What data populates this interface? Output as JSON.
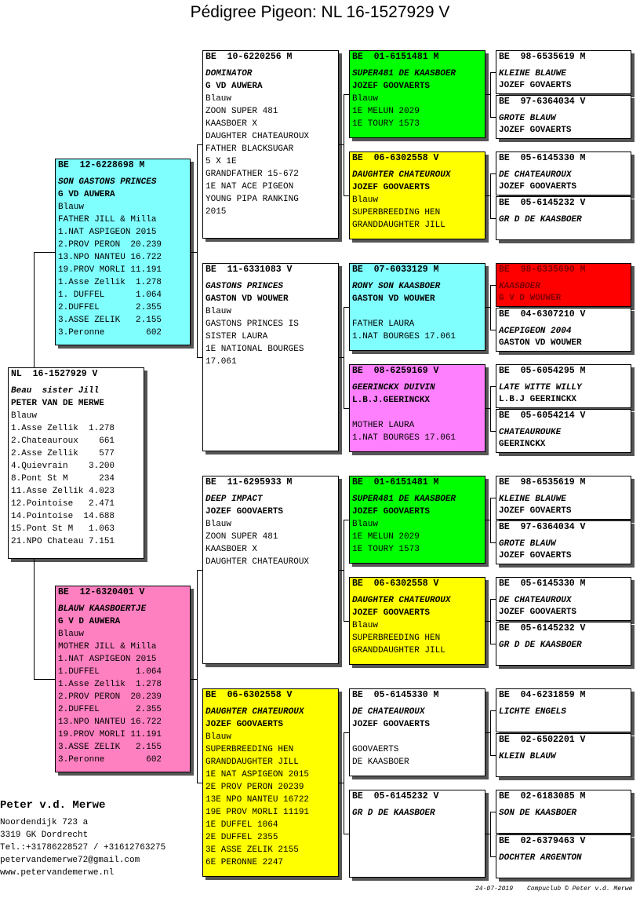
{
  "title": "Pédigree Pigeon: NL  16-1527929 V",
  "boxes": [
    {
      "id": "NL  16-1527929 V",
      "name": "Beau  sister Jill",
      "breeder": "PETER VAN DE MERWE",
      "plumage": "Blauw",
      "notes": [
        "1.Asse Zellik  1.278",
        "2.Chateauroux    661",
        "2.Asse Zellik    577",
        "4.Quievrain    3.200",
        "8.Pont St M      234",
        "11.Asse Zellik 4.023",
        "12.Pointoise   2.471",
        "14.Pointoise  14.688",
        "15.Pont St M   1.063",
        "21.NPO Chateau 7.151"
      ],
      "fill": "#ffffff"
    },
    {
      "id": "BE  12-6228698 M",
      "name": "SON GASTONS PRINCES",
      "breeder": "G VD AUWERA",
      "plumage": "Blauw",
      "notes": [
        "FATHER JILL & Milla",
        "1.NAT ASPIGEON 2015",
        "2.PROV PERON  20.239",
        "13.NPO NANTEU 16.722",
        "19.PROV MORLI 11.191",
        "1.Asse Zellik  1.278",
        "1. DUFFEL      1.064",
        "2.DUFFEL       2.355",
        "3.ASSE ZELIK   2.155",
        "3.Peronne        602"
      ],
      "fill": "#80ffff"
    },
    {
      "id": "BE  12-6320401 V",
      "name": "BLAUW KAASBOERTJE",
      "breeder": "G V D AUWERA",
      "plumage": "Blauw",
      "notes": [
        "MOTHER JILL & Milla",
        "1.NAT ASPIGEON 2015",
        "1.DUFFEL       1.064",
        "1.Asse Zellik  1.278",
        "2.PROV PERON  20.239",
        "2.DUFFEL       2.355",
        "13.NPO NANTEU 16.722",
        "19.PROV MORLI 11.191",
        "3.ASSE ZELIK   2.155",
        "3.Peronne        602"
      ],
      "fill": "#ff80c0"
    },
    {
      "id": "BE  10-6220256 M",
      "name": "DOMINATOR",
      "breeder": "G VD AUWERA",
      "plumage": "Blauw",
      "notes": [
        "ZOON SUPER 481",
        "KAASBOER X",
        "DAUGHTER CHATEAUROUX",
        "FATHER BLACKSUGAR",
        "5 X 1E",
        "GRANDFATHER 15-672",
        "1E NAT ACE PIGEON",
        "YOUNG PIPA RANKING",
        "2015"
      ],
      "fill": "#ffffff"
    },
    {
      "id": "BE  11-6331083 V",
      "name": "GASTONS PRINCES",
      "breeder": "GASTON VD WOUWER",
      "plumage": "Blauw",
      "notes": [
        "GASTONS PRINCES IS",
        "SISTER LAURA",
        "1E NATIONAL BOURGES",
        "17.061"
      ],
      "fill": "#ffffff"
    },
    {
      "id": "BE  11-6295933 M",
      "name": "DEEP IMPACT",
      "breeder": "JOZEF GOOVAERTS",
      "plumage": "Blauw",
      "notes": [
        "ZOON SUPER 481",
        "KAASBOER X",
        "DAUGHTER CHATEAUROUX"
      ],
      "fill": "#ffffff"
    },
    {
      "id": "BE  06-6302558 V",
      "name": "DAUGHTER CHATEUROUX",
      "breeder": "JOZEF GOOVAERTS",
      "plumage": "Blauw",
      "notes": [
        "SUPERBREEDING HEN",
        "GRANDDAUGHTER JILL",
        "1E NAT ASPIGEON 2015",
        "2E PROV PERON 20239",
        "13E NPO NANTEU 16722",
        "19E PROV MORLI 11191",
        "1E DUFFEL 1064",
        "2E DUFFEL 2355",
        "3E ASSE ZELIK 2155",
        "6E PERONNE 2247"
      ],
      "fill": "#ffff00"
    },
    {
      "id": "BE  01-6151481 M",
      "name": "SUPER481 DE KAASBOER",
      "breeder": "JOZEF GOOVAERTS",
      "plumage": "Blauw",
      "notes": [
        "1E MELUN 2029",
        "1E TOURY 1573"
      ],
      "fill": "#00ff00"
    },
    {
      "id": "BE  06-6302558 V",
      "name": "DAUGHTER CHATEUROUX",
      "breeder": "JOZEF GOOVAERTS",
      "plumage": "Blauw",
      "notes": [
        "SUPERBREEDING HEN",
        "GRANDDAUGHTER JILL"
      ],
      "fill": "#ffff00"
    },
    {
      "id": "BE  07-6033129 M",
      "name": "RONY SON KAASBOER",
      "breeder": "GASTON VD WOUWER",
      "notes": [
        "FATHER LAURA",
        "1.NAT BOURGES 17.061"
      ],
      "fill": "#80ffff"
    },
    {
      "id": "BE  08-6259169 V",
      "name": "GEERINCKX DUIVIN",
      "breeder": "L.B.J.GEERINCKX",
      "notes": [
        "MOTHER LAURA",
        "1.NAT BOURGES 17.061"
      ],
      "fill": "#ff80ff"
    },
    {
      "id": "BE  01-6151481 M",
      "name": "SUPER481 DE KAASBOER",
      "breeder": "JOZEF GOOVAERTS",
      "plumage": "Blauw",
      "notes": [
        "1E MELUN 2029",
        "1E TOURY 1573"
      ],
      "fill": "#00ff00"
    },
    {
      "id": "BE  06-6302558 V",
      "name": "DAUGHTER CHATEUROUX",
      "breeder": "JOZEF GOOVAERTS",
      "plumage": "Blauw",
      "notes": [
        "SUPERBREEDING HEN",
        "GRANDDAUGHTER JILL"
      ],
      "fill": "#ffff00"
    },
    {
      "id": "BE  05-6145330 M",
      "name": "DE CHATEAUROUX",
      "breeder": "JOZEF GOOVAERTS",
      "notes": [
        "GOOVAERTS",
        "DE KAASBOER"
      ],
      "fill": "#ffffff"
    },
    {
      "id": "BE  05-6145232 V",
      "name": "GR D DE KAASBOER",
      "fill": "#ffffff"
    },
    {
      "id": "BE  98-6535619 M",
      "name": "KLEINE BLAUWE",
      "breeder": "JOZEF GOVAERTS",
      "fill": "#ffffff"
    },
    {
      "id": "BE  97-6364034 V",
      "name": "GROTE BLAUW",
      "breeder": "JOZEF GOVAERTS",
      "fill": "#ffffff"
    },
    {
      "id": "BE  05-6145330 M",
      "name": "DE CHATEAUROUX",
      "breeder": "JOZEF GOOVAERTS",
      "fill": "#ffffff"
    },
    {
      "id": "BE  05-6145232 V",
      "name": "GR D DE KAASBOER",
      "fill": "#ffffff"
    },
    {
      "id": "BE  98-6335690 M",
      "name": "KAASBOER",
      "breeder": "G V D WOUWER",
      "fill": "#ff0000"
    },
    {
      "id": "BE  04-6307210 V",
      "name": "ACEPIGEON 2004",
      "breeder": "GASTON VD WOUWER",
      "fill": "#ffffff"
    },
    {
      "id": "BE  05-6054295 M",
      "name": "LATE WITTE WILLY",
      "breeder": "L.B.J GEERINCKX",
      "fill": "#ffffff"
    },
    {
      "id": "BE  05-6054214 V",
      "name": "CHATEAUROUKE",
      "breeder": "GEERINCKX",
      "fill": "#ffffff"
    },
    {
      "id": "BE  98-6535619 M",
      "name": "KLEINE BLAUWE",
      "breeder": "JOZEF GOVAERTS",
      "fill": "#ffffff"
    },
    {
      "id": "BE  97-6364034 V",
      "name": "GROTE BLAUW",
      "breeder": "JOZEF GOVAERTS",
      "fill": "#ffffff"
    },
    {
      "id": "BE  05-6145330 M",
      "name": "DE CHATEAUROUX",
      "breeder": "JOZEF GOOVAERTS",
      "fill": "#ffffff"
    },
    {
      "id": "BE  05-6145232 V",
      "name": "GR D DE KAASBOER",
      "fill": "#ffffff"
    },
    {
      "id": "BE  04-6231859 M",
      "name": "LICHTE ENGELS",
      "fill": "#ffffff"
    },
    {
      "id": "BE  02-6502201 V",
      "name": "KLEIN BLAUW",
      "fill": "#ffffff"
    },
    {
      "id": "BE  02-6183085 M",
      "name": "SON DE KAASBOER",
      "fill": "#ffffff"
    },
    {
      "id": "BE  02-6379463 V",
      "name": "DOCHTER ARGENTON",
      "fill": "#ffffff"
    }
  ],
  "owner": {
    "name": "Peter v.d. Merwe",
    "lines": [
      "Noordendijk 723 a",
      "3319 GK  Dordrecht",
      "Tel.:+31786228527 / +31612763275",
      "petervandemerwe72@gmail.com",
      "www.petervandemerwe.nl"
    ]
  },
  "date": "24-07-2019",
  "credit": "Compuclub © Peter v.d. Merwe"
}
